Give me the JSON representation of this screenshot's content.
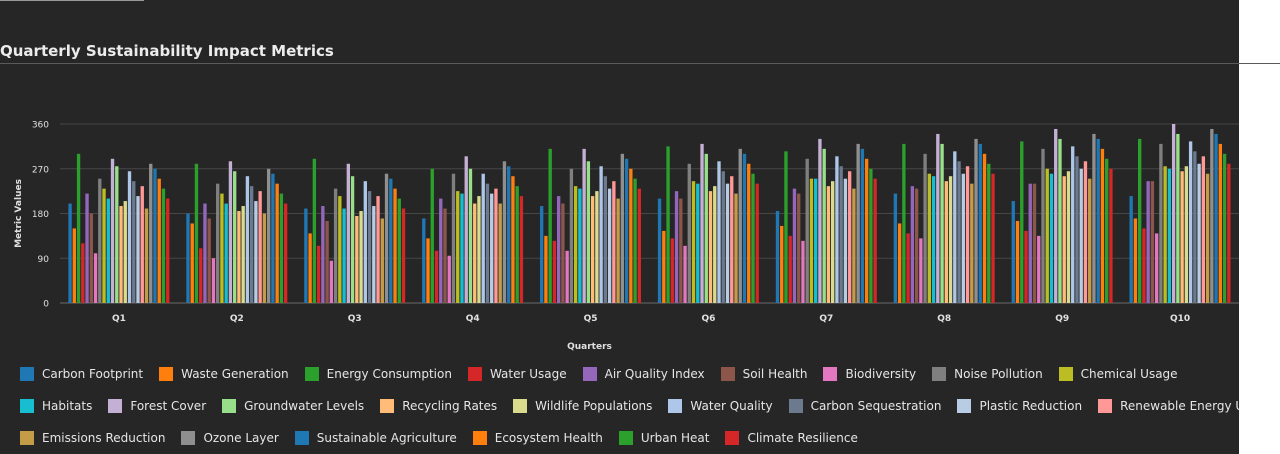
{
  "chart_data": {
    "type": "bar",
    "title": "Quarterly Sustainability Impact Metrics",
    "xlabel": "Quarters",
    "ylabel": "Metric Values",
    "ylim": [
      0,
      360
    ],
    "yticks": [
      0,
      90,
      180,
      270,
      360
    ],
    "grid": true,
    "legend_position": "bottom",
    "categories": [
      "Q1",
      "Q2",
      "Q3",
      "Q4",
      "Q5",
      "Q6",
      "Q7",
      "Q8",
      "Q9",
      "Q10"
    ],
    "series": [
      {
        "name": "Carbon Footprint",
        "color": "#1f77b4",
        "values": [
          200,
          180,
          190,
          170,
          195,
          210,
          185,
          220,
          205,
          215
        ]
      },
      {
        "name": "Waste Generation",
        "color": "#ff7f0e",
        "values": [
          150,
          160,
          140,
          130,
          135,
          145,
          155,
          160,
          165,
          170
        ]
      },
      {
        "name": "Energy Consumption",
        "color": "#2ca02c",
        "values": [
          300,
          280,
          290,
          270,
          310,
          315,
          305,
          320,
          325,
          330
        ]
      },
      {
        "name": "Water Usage",
        "color": "#d62728",
        "values": [
          120,
          110,
          115,
          105,
          125,
          130,
          135,
          140,
          145,
          150
        ]
      },
      {
        "name": "Air Quality Index",
        "color": "#9467bd",
        "values": [
          220,
          200,
          195,
          210,
          215,
          225,
          230,
          235,
          240,
          245
        ]
      },
      {
        "name": "Soil Health",
        "color": "#8c564b",
        "values": [
          180,
          170,
          165,
          190,
          200,
          210,
          220,
          230,
          240,
          245
        ]
      },
      {
        "name": "Biodiversity",
        "color": "#e377c2",
        "values": [
          100,
          90,
          85,
          95,
          105,
          115,
          125,
          130,
          135,
          140
        ]
      },
      {
        "name": "Noise Pollution",
        "color": "#7f7f7f",
        "values": [
          250,
          240,
          230,
          260,
          270,
          280,
          290,
          300,
          310,
          320
        ]
      },
      {
        "name": "Chemical Usage",
        "color": "#bcbd22",
        "values": [
          230,
          220,
          215,
          225,
          235,
          245,
          250,
          260,
          270,
          275
        ]
      },
      {
        "name": "Habitats",
        "color": "#17becf",
        "values": [
          210,
          200,
          190,
          220,
          230,
          240,
          250,
          255,
          260,
          270
        ]
      },
      {
        "name": "Forest Cover",
        "color": "#c5b0d5",
        "values": [
          290,
          285,
          280,
          295,
          310,
          320,
          330,
          340,
          350,
          360
        ]
      },
      {
        "name": "Groundwater Levels",
        "color": "#98df8a",
        "values": [
          275,
          265,
          255,
          270,
          285,
          300,
          310,
          320,
          330,
          340
        ]
      },
      {
        "name": "Recycling Rates",
        "color": "#ffbb78",
        "values": [
          195,
          185,
          175,
          200,
          215,
          225,
          235,
          245,
          255,
          265
        ]
      },
      {
        "name": "Wildlife Populations",
        "color": "#dbdb8d",
        "values": [
          205,
          195,
          185,
          215,
          225,
          235,
          245,
          255,
          265,
          275
        ]
      },
      {
        "name": "Water Quality",
        "color": "#aec7e8",
        "values": [
          265,
          255,
          245,
          260,
          275,
          285,
          295,
          305,
          315,
          325
        ]
      },
      {
        "name": "Carbon Sequestration",
        "color": "#6b7a8f",
        "values": [
          245,
          235,
          225,
          240,
          255,
          265,
          275,
          285,
          295,
          305
        ]
      },
      {
        "name": "Plastic Reduction",
        "color": "#b8cce4",
        "values": [
          215,
          205,
          195,
          220,
          230,
          240,
          250,
          260,
          270,
          280
        ]
      },
      {
        "name": "Renewable Energy Usage",
        "color": "#ff9896",
        "values": [
          235,
          225,
          215,
          230,
          245,
          255,
          265,
          275,
          285,
          295
        ]
      },
      {
        "name": "Emissions Reduction",
        "color": "#c49c48",
        "values": [
          190,
          180,
          170,
          200,
          210,
          220,
          230,
          240,
          250,
          260
        ]
      },
      {
        "name": "Ozone Layer",
        "color": "#8f8f8f",
        "values": [
          280,
          270,
          260,
          285,
          300,
          310,
          320,
          330,
          340,
          350
        ]
      },
      {
        "name": "Sustainable Agriculture",
        "color": "#1f77b4",
        "values": [
          270,
          260,
          250,
          275,
          290,
          300,
          310,
          320,
          330,
          340
        ]
      },
      {
        "name": "Ecosystem Health",
        "color": "#ff7f0e",
        "values": [
          250,
          240,
          230,
          255,
          270,
          280,
          290,
          300,
          310,
          320
        ]
      },
      {
        "name": "Urban Heat",
        "color": "#2ca02c",
        "values": [
          230,
          220,
          210,
          235,
          250,
          260,
          270,
          280,
          290,
          300
        ]
      },
      {
        "name": "Climate Resilience",
        "color": "#d62728",
        "values": [
          210,
          200,
          190,
          215,
          230,
          240,
          250,
          260,
          270,
          280
        ]
      }
    ]
  }
}
